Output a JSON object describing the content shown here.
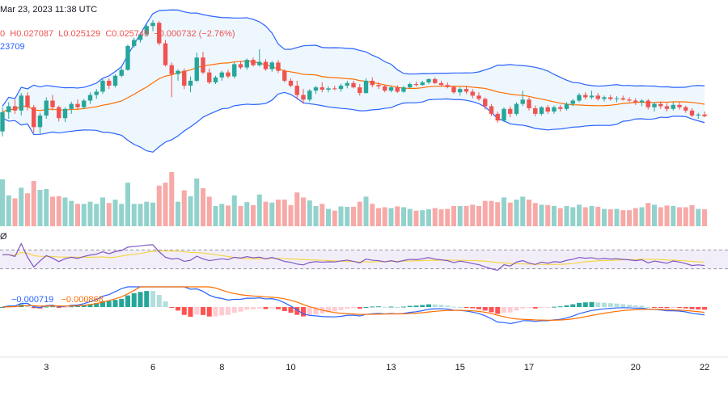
{
  "header": {
    "date_line": "Mar 23, 2023 11:38 UTC",
    "ohlc_prefix": "0",
    "high": "H0.027087",
    "low": "L0.025129",
    "close": "C0.025749",
    "change": "−0.000732 (−2.76%)",
    "bb_value": "23709",
    "rsi_label": "Ø",
    "macd_value1": "−0.000719",
    "macd_value2": "−0.000868"
  },
  "colors": {
    "up": "#26a69a",
    "down": "#ef5350",
    "bb_line": "#2962ff",
    "bb_fill": "#e3f2fd",
    "bb_mid": "#ff6d00",
    "rsi_line": "#7e57c2",
    "rsi_ma": "#f5d547",
    "rsi_band": "#ede7f6",
    "macd_line": "#2962ff",
    "signal_line": "#ff6d00",
    "hist_up_strong": "#26a69a",
    "hist_up_weak": "#b2dfdb",
    "hist_down_strong": "#ff5252",
    "hist_down_weak": "#ffcdd2"
  },
  "chart_data": {
    "type": "candlestick",
    "x_tick_labels": [
      "3",
      "6",
      "8",
      "10",
      "13",
      "15",
      "17",
      "20",
      "22"
    ],
    "x_tick_index": [
      7,
      24,
      35,
      46,
      62,
      73,
      84,
      101,
      112
    ],
    "ylim_price": [
      0.0229,
      0.029
    ],
    "ohlc": [
      [
        0.02552,
        0.02625,
        0.02537,
        0.0261
      ],
      [
        0.0261,
        0.0264,
        0.0259,
        0.02628
      ],
      [
        0.02628,
        0.02648,
        0.02605,
        0.02615
      ],
      [
        0.02615,
        0.02668,
        0.026,
        0.0266
      ],
      [
        0.0266,
        0.0267,
        0.02615,
        0.02625
      ],
      [
        0.02625,
        0.02632,
        0.02548,
        0.02565
      ],
      [
        0.02565,
        0.02608,
        0.02545,
        0.026
      ],
      [
        0.026,
        0.02655,
        0.0259,
        0.02645
      ],
      [
        0.02645,
        0.02662,
        0.02615,
        0.02625
      ],
      [
        0.02625,
        0.0263,
        0.02582,
        0.02592
      ],
      [
        0.02592,
        0.02625,
        0.0258,
        0.0262
      ],
      [
        0.0262,
        0.02642,
        0.02605,
        0.02635
      ],
      [
        0.02635,
        0.02648,
        0.02618,
        0.02625
      ],
      [
        0.02625,
        0.0265,
        0.0262,
        0.02645
      ],
      [
        0.02645,
        0.0267,
        0.02635,
        0.02662
      ],
      [
        0.02662,
        0.0268,
        0.0265,
        0.02672
      ],
      [
        0.02672,
        0.0271,
        0.02665,
        0.02705
      ],
      [
        0.02705,
        0.02712,
        0.0268,
        0.0269
      ],
      [
        0.0269,
        0.02725,
        0.02685,
        0.0272
      ],
      [
        0.0272,
        0.02745,
        0.02715,
        0.02738
      ],
      [
        0.02738,
        0.02815,
        0.02735,
        0.0281
      ],
      [
        0.0281,
        0.02835,
        0.02805,
        0.02828
      ],
      [
        0.02828,
        0.0285,
        0.0282,
        0.02845
      ],
      [
        0.02845,
        0.02875,
        0.0284,
        0.0287
      ],
      [
        0.0287,
        0.02888,
        0.02855,
        0.0288
      ],
      [
        0.0288,
        0.02885,
        0.02812,
        0.02818
      ],
      [
        0.02818,
        0.02828,
        0.02748,
        0.02752
      ],
      [
        0.02752,
        0.0276,
        0.02655,
        0.02725
      ],
      [
        0.02725,
        0.0274,
        0.02705,
        0.02735
      ],
      [
        0.02735,
        0.02742,
        0.0268,
        0.0269
      ],
      [
        0.0269,
        0.02718,
        0.0267,
        0.02705
      ],
      [
        0.02705,
        0.0279,
        0.027,
        0.02775
      ],
      [
        0.02775,
        0.02792,
        0.02725,
        0.0273
      ],
      [
        0.0273,
        0.02742,
        0.02695,
        0.027
      ],
      [
        0.027,
        0.0272,
        0.02695,
        0.02715
      ],
      [
        0.02715,
        0.02735,
        0.02705,
        0.0273
      ],
      [
        0.0273,
        0.02738,
        0.02712,
        0.02718
      ],
      [
        0.02718,
        0.02762,
        0.02712,
        0.02755
      ],
      [
        0.02755,
        0.02765,
        0.0274,
        0.02745
      ],
      [
        0.02745,
        0.02772,
        0.02738,
        0.02768
      ],
      [
        0.02768,
        0.02775,
        0.02748,
        0.02752
      ],
      [
        0.02752,
        0.028,
        0.02748,
        0.02762
      ],
      [
        0.02762,
        0.0277,
        0.02735,
        0.0274
      ],
      [
        0.0274,
        0.02765,
        0.02732,
        0.0276
      ],
      [
        0.0276,
        0.02768,
        0.02728,
        0.02735
      ],
      [
        0.02735,
        0.0274,
        0.027,
        0.02705
      ],
      [
        0.02705,
        0.02712,
        0.02685,
        0.0269
      ],
      [
        0.0269,
        0.02705,
        0.02648,
        0.02662
      ],
      [
        0.02662,
        0.0268,
        0.02635,
        0.02648
      ],
      [
        0.02648,
        0.0268,
        0.02642,
        0.02675
      ],
      [
        0.02675,
        0.0269,
        0.02665,
        0.02685
      ],
      [
        0.02685,
        0.027,
        0.0267,
        0.02678
      ],
      [
        0.02678,
        0.02688,
        0.0267,
        0.02682
      ],
      [
        0.02682,
        0.0269,
        0.02676,
        0.0268
      ],
      [
        0.0268,
        0.02696,
        0.02672,
        0.0269
      ],
      [
        0.0269,
        0.02705,
        0.02682,
        0.02698
      ],
      [
        0.02698,
        0.02705,
        0.02682,
        0.02685
      ],
      [
        0.02685,
        0.02695,
        0.0266,
        0.02668
      ],
      [
        0.02668,
        0.02712,
        0.02665,
        0.02705
      ],
      [
        0.02705,
        0.02715,
        0.02685,
        0.02692
      ],
      [
        0.02692,
        0.027,
        0.0268,
        0.02688
      ],
      [
        0.02688,
        0.02692,
        0.0267,
        0.02675
      ],
      [
        0.02675,
        0.0269,
        0.0267,
        0.02685
      ],
      [
        0.02685,
        0.02692,
        0.02668,
        0.02672
      ],
      [
        0.02672,
        0.0269,
        0.02668,
        0.02685
      ],
      [
        0.02685,
        0.027,
        0.02682,
        0.02695
      ],
      [
        0.02695,
        0.02702,
        0.02688,
        0.02692
      ],
      [
        0.02692,
        0.02705,
        0.0269,
        0.027
      ],
      [
        0.027,
        0.02712,
        0.02695,
        0.0271
      ],
      [
        0.0271,
        0.02715,
        0.02695,
        0.02698
      ],
      [
        0.02698,
        0.02705,
        0.02688,
        0.02692
      ],
      [
        0.02692,
        0.027,
        0.02682,
        0.02686
      ],
      [
        0.02686,
        0.0269,
        0.02665,
        0.0267
      ],
      [
        0.0267,
        0.02685,
        0.0266,
        0.0268
      ],
      [
        0.0268,
        0.0269,
        0.02665,
        0.02672
      ],
      [
        0.02672,
        0.0268,
        0.02652,
        0.0266
      ],
      [
        0.0266,
        0.0267,
        0.02645,
        0.0265
      ],
      [
        0.0265,
        0.02655,
        0.02618,
        0.02628
      ],
      [
        0.02628,
        0.02635,
        0.02598,
        0.02605
      ],
      [
        0.02605,
        0.02612,
        0.02578,
        0.02585
      ],
      [
        0.02585,
        0.02625,
        0.0258,
        0.0262
      ],
      [
        0.0262,
        0.02628,
        0.02595,
        0.02605
      ],
      [
        0.02605,
        0.0264,
        0.026,
        0.02635
      ],
      [
        0.02635,
        0.02675,
        0.02628,
        0.02648
      ],
      [
        0.02648,
        0.02655,
        0.02615,
        0.02622
      ],
      [
        0.02622,
        0.0263,
        0.02598,
        0.02605
      ],
      [
        0.02605,
        0.02628,
        0.026,
        0.02625
      ],
      [
        0.02625,
        0.02632,
        0.02605,
        0.02612
      ],
      [
        0.02612,
        0.0263,
        0.02605,
        0.02625
      ],
      [
        0.02625,
        0.02632,
        0.02612,
        0.0262
      ],
      [
        0.0262,
        0.0264,
        0.02615,
        0.02635
      ],
      [
        0.02635,
        0.0265,
        0.02628,
        0.02645
      ],
      [
        0.02645,
        0.02668,
        0.0264,
        0.02662
      ],
      [
        0.02662,
        0.0267,
        0.02648,
        0.02655
      ],
      [
        0.02655,
        0.02675,
        0.0265,
        0.0266
      ],
      [
        0.0266,
        0.02668,
        0.02645,
        0.0265
      ],
      [
        0.0265,
        0.0266,
        0.02642,
        0.02655
      ],
      [
        0.02655,
        0.02662,
        0.02645,
        0.0265
      ],
      [
        0.0265,
        0.02658,
        0.0264,
        0.02652
      ],
      [
        0.02652,
        0.0266,
        0.02645,
        0.02648
      ],
      [
        0.02648,
        0.02655,
        0.0264,
        0.02645
      ],
      [
        0.02645,
        0.02652,
        0.02632,
        0.0264
      ],
      [
        0.0264,
        0.0265,
        0.02628,
        0.02645
      ],
      [
        0.02645,
        0.0265,
        0.02618,
        0.02625
      ],
      [
        0.02625,
        0.0264,
        0.02612,
        0.02635
      ],
      [
        0.02635,
        0.02642,
        0.0262,
        0.02628
      ],
      [
        0.02628,
        0.02638,
        0.02612,
        0.0262
      ],
      [
        0.0262,
        0.0264,
        0.02615,
        0.02632
      ],
      [
        0.02632,
        0.0264,
        0.02618,
        0.02625
      ],
      [
        0.02625,
        0.0263,
        0.02608,
        0.02615
      ],
      [
        0.02615,
        0.02622,
        0.02595,
        0.026
      ],
      [
        0.026,
        0.02608,
        0.0259,
        0.02603
      ],
      [
        0.02603,
        0.02612,
        0.02595,
        0.02598
      ]
    ]
  }
}
